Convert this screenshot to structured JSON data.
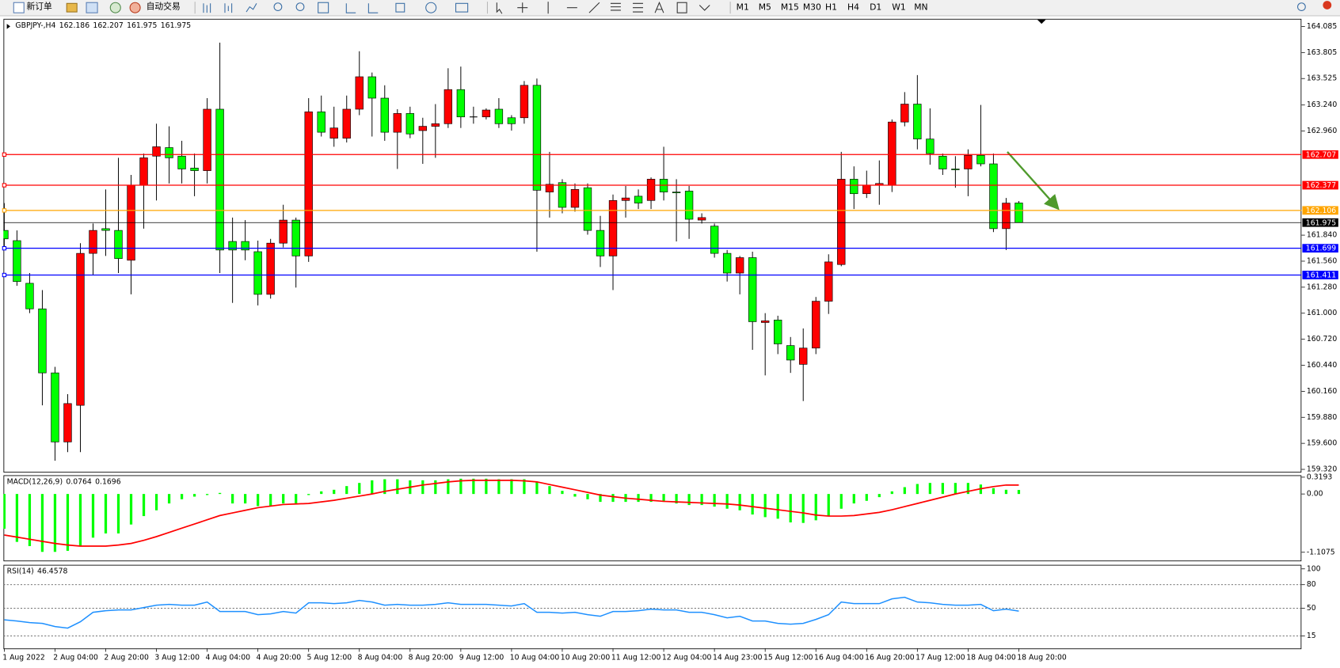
{
  "toolbar": {
    "new_order": "新订单",
    "auto_trading": "自动交易",
    "timeframes": [
      "M1",
      "M5",
      "M15",
      "M30",
      "H1",
      "H4",
      "D1",
      "W1",
      "MN"
    ]
  },
  "chart_data": [
    {
      "type": "candlestick",
      "title": "GBPJPY-,H4",
      "header_values": [
        162.186,
        162.207,
        161.975,
        161.975
      ],
      "up_color": "#ff0000",
      "down_color": "#00ff00",
      "ylim": [
        159.294,
        164.168
      ],
      "yticks": [
        164.085,
        163.805,
        163.525,
        {
          "value": 163.24,
          "label": "163.240"
        },
        {
          "value": 162.96,
          "label": "162.960"
        },
        {
          "value": 161.84,
          "label": "161.840"
        },
        {
          "value": 161.56,
          "label": "161.560"
        },
        {
          "value": 161.28,
          "label": "161.280"
        },
        {
          "value": 161.0,
          "label": "161.000"
        },
        {
          "value": 160.72,
          "label": "160.720"
        },
        {
          "value": 160.44,
          "label": "160.440"
        },
        {
          "value": 160.16,
          "label": "160.160"
        },
        {
          "value": 159.88,
          "label": "159.880"
        },
        {
          "value": 159.6,
          "label": "159.600"
        },
        {
          "value": 159.32,
          "label": "159.320"
        }
      ],
      "hlines": [
        {
          "value": 162.707,
          "color": "#ff0000"
        },
        {
          "value": 162.377,
          "color": "#ff0000"
        },
        {
          "value": 162.106,
          "color": "#ffa500"
        },
        {
          "value": 161.975,
          "color": "#000000"
        },
        {
          "value": 161.699,
          "color": "#0000ff"
        },
        {
          "value": 161.411,
          "color": "#0000ff"
        }
      ],
      "categories": [
        "1 Aug 2022",
        null,
        null,
        null,
        "2 Aug 04:00",
        null,
        null,
        null,
        "2 Aug 20:00",
        null,
        null,
        null,
        "3 Aug 12:00",
        null,
        null,
        null,
        "4 Aug 04:00",
        null,
        null,
        null,
        "4 Aug 20:00",
        null,
        null,
        null,
        "5 Aug 12:00",
        null,
        null,
        null,
        "8 Aug 04:00",
        null,
        null,
        null,
        "8 Aug 20:00",
        null,
        null,
        null,
        "9 Aug 12:00",
        null,
        null,
        null,
        "10 Aug 04:00",
        null,
        null,
        null,
        "10 Aug 20:00",
        null,
        null,
        null,
        "11 Aug 12:00",
        null,
        null,
        null,
        "12 Aug 04:00",
        null,
        null,
        null,
        "14 Aug 23:00",
        null,
        null,
        null,
        "15 Aug 12:00",
        null,
        null,
        null,
        "16 Aug 04:00",
        null,
        null,
        null,
        "16 Aug 20:00",
        null,
        null,
        null,
        "17 Aug 12:00",
        null,
        null,
        null,
        "18 Aug 04:00",
        null,
        null,
        null,
        "18 Aug 20:00"
      ],
      "open": [
        161.891,
        161.781,
        161.322,
        161.047,
        160.358,
        159.615,
        160.009,
        161.644,
        161.91,
        161.891,
        161.57,
        162.378,
        162.69,
        162.782,
        162.69,
        162.562,
        162.534,
        163.195,
        161.772,
        161.772,
        161.662,
        161.203,
        161.754,
        162.002,
        161.616,
        163.167,
        162.883,
        162.883,
        163.195,
        163.544,
        163.314,
        162.947,
        163.149,
        162.965,
        163.011,
        163.039,
        163.406,
        163.112,
        163.112,
        163.195,
        163.103,
        163.103,
        163.452,
        162.304,
        162.405,
        162.139,
        162.35,
        161.891,
        161.616,
        162.213,
        162.259,
        162.213,
        162.442,
        162.304,
        162.314,
        162.002,
        161.937,
        161.644,
        161.432,
        161.598,
        160.9,
        160.927,
        160.652,
        160.45,
        160.625,
        161.129,
        161.524,
        162.442,
        162.286,
        162.378,
        162.378,
        163.057,
        163.25,
        162.874,
        162.69,
        162.552,
        162.552,
        162.699,
        162.607,
        161.91,
        162.186
      ],
      "high": [
        162.185,
        161.891,
        161.432,
        161.249,
        160.423,
        160.129,
        161.754,
        161.965,
        162.332,
        162.672,
        162.488,
        162.718,
        163.039,
        163.011,
        162.855,
        162.718,
        163.314,
        163.911,
        162.029,
        162.002,
        161.781,
        161.8,
        162.167,
        162.029,
        163.314,
        163.342,
        163.222,
        163.342,
        163.819,
        163.59,
        163.452,
        163.195,
        163.222,
        163.103,
        163.25,
        163.636,
        163.654,
        163.222,
        163.204,
        163.314,
        163.131,
        163.498,
        163.525,
        162.736,
        162.442,
        162.396,
        162.396,
        162.047,
        162.277,
        162.369,
        162.332,
        162.461,
        162.791,
        162.442,
        162.369,
        162.075,
        161.965,
        161.68,
        161.616,
        161.662,
        161.001,
        160.973,
        160.744,
        160.836,
        161.175,
        161.634,
        162.736,
        162.58,
        162.534,
        162.644,
        163.085,
        163.379,
        163.562,
        163.204,
        162.718,
        162.69,
        162.763,
        163.241,
        162.718,
        162.24,
        162.207
      ],
      "low": [
        161.708,
        161.295,
        161.001,
        160.009,
        159.413,
        159.505,
        159.505,
        161.414,
        161.616,
        161.432,
        161.203,
        161.91,
        162.213,
        162.396,
        162.396,
        162.259,
        162.396,
        161.432,
        161.111,
        161.57,
        161.084,
        161.157,
        161.708,
        161.276,
        161.552,
        162.901,
        162.791,
        162.837,
        163.131,
        162.901,
        162.855,
        162.552,
        162.883,
        162.607,
        162.672,
        162.993,
        162.993,
        163.039,
        163.085,
        162.993,
        162.965,
        163.039,
        161.662,
        162.029,
        162.075,
        162.093,
        161.845,
        161.497,
        161.249,
        162.029,
        162.121,
        162.121,
        162.213,
        161.772,
        161.8,
        161.965,
        161.598,
        161.341,
        161.203,
        160.606,
        160.331,
        160.56,
        160.358,
        160.055,
        160.56,
        160.992,
        161.506,
        162.121,
        162.24,
        162.167,
        162.304,
        163.011,
        162.763,
        162.598,
        162.488,
        162.35,
        162.259,
        162.58,
        161.873,
        161.68,
        161.975
      ],
      "close": [
        161.8,
        161.341,
        161.047,
        160.358,
        159.615,
        160.028,
        161.644,
        161.891,
        161.891,
        161.588,
        162.378,
        162.672,
        162.791,
        162.672,
        162.552,
        162.534,
        163.195,
        161.68,
        161.68,
        161.68,
        161.203,
        161.754,
        162.002,
        161.616,
        163.167,
        162.947,
        162.993,
        163.195,
        163.544,
        163.314,
        162.947,
        163.149,
        162.929,
        163.011,
        163.039,
        163.406,
        163.112,
        163.112,
        163.186,
        163.039,
        163.039,
        163.452,
        162.323,
        162.387,
        162.139,
        162.332,
        161.891,
        161.616,
        162.213,
        162.24,
        162.185,
        162.442,
        162.304,
        162.295,
        162.011,
        162.029,
        161.644,
        161.432,
        161.598,
        160.909,
        160.918,
        160.67,
        160.496,
        160.625,
        161.129,
        161.552,
        162.442,
        162.286,
        162.378,
        162.396,
        163.057,
        163.25,
        162.874,
        162.718,
        162.552,
        162.543,
        162.699,
        162.607,
        161.91,
        162.185,
        161.975
      ]
    },
    {
      "type": "macd",
      "title": "MACD(12,26,9)",
      "header_values": [
        0.0764,
        0.1696
      ],
      "ylim": [
        -1.264,
        0.357
      ],
      "yticks": [
        0.3193,
        {
          "value": 0,
          "label": "0.00"
        },
        -1.1075
      ],
      "histogram": {
        "color": "#00ff00",
        "values": [
          -0.66,
          -0.91,
          -0.99,
          -1.1,
          -1.1,
          -1.08,
          -0.99,
          -0.83,
          -0.75,
          -0.75,
          -0.58,
          -0.42,
          -0.31,
          -0.18,
          -0.1,
          -0.05,
          -0.02,
          0.02,
          -0.18,
          -0.18,
          -0.23,
          -0.23,
          -0.18,
          -0.2,
          -0.02,
          0.05,
          0.08,
          0.15,
          0.21,
          0.26,
          0.28,
          0.28,
          0.26,
          0.26,
          0.26,
          0.28,
          0.29,
          0.29,
          0.29,
          0.28,
          0.28,
          0.28,
          0.23,
          0.15,
          0.06,
          -0.05,
          -0.1,
          -0.15,
          -0.15,
          -0.15,
          -0.15,
          -0.15,
          -0.15,
          -0.18,
          -0.21,
          -0.21,
          -0.24,
          -0.28,
          -0.31,
          -0.39,
          -0.44,
          -0.47,
          -0.54,
          -0.55,
          -0.5,
          -0.42,
          -0.28,
          -0.18,
          -0.13,
          -0.06,
          0.05,
          0.13,
          0.19,
          0.21,
          0.21,
          0.21,
          0.21,
          0.18,
          0.11,
          0.08,
          0.0764
        ]
      },
      "signal": {
        "color": "#ff0000",
        "values": [
          -0.78,
          -0.82,
          -0.86,
          -0.9,
          -0.94,
          -0.97,
          -0.99,
          -0.99,
          -0.99,
          -0.97,
          -0.94,
          -0.88,
          -0.81,
          -0.73,
          -0.65,
          -0.57,
          -0.49,
          -0.41,
          -0.36,
          -0.31,
          -0.26,
          -0.23,
          -0.2,
          -0.19,
          -0.18,
          -0.15,
          -0.12,
          -0.08,
          -0.04,
          0.0,
          0.05,
          0.09,
          0.13,
          0.17,
          0.2,
          0.23,
          0.25,
          0.26,
          0.26,
          0.26,
          0.26,
          0.25,
          0.23,
          0.18,
          0.13,
          0.08,
          0.03,
          -0.02,
          -0.05,
          -0.08,
          -0.1,
          -0.12,
          -0.14,
          -0.15,
          -0.16,
          -0.17,
          -0.18,
          -0.19,
          -0.21,
          -0.24,
          -0.27,
          -0.3,
          -0.33,
          -0.36,
          -0.4,
          -0.42,
          -0.42,
          -0.41,
          -0.38,
          -0.35,
          -0.3,
          -0.24,
          -0.18,
          -0.12,
          -0.06,
          0.0,
          0.05,
          0.1,
          0.14,
          0.17,
          0.1696
        ]
      }
    },
    {
      "type": "line",
      "title": "RSI(14)",
      "header_values": [
        46.4578
      ],
      "color": "#1e90ff",
      "ylim": [
        -0.7,
        105.2
      ],
      "yticks": [
        100,
        80,
        50,
        15
      ],
      "levels": [
        80,
        50,
        15
      ],
      "values": [
        35.5,
        34,
        32,
        31,
        27,
        25,
        33,
        45,
        47,
        48,
        48,
        51,
        54,
        55,
        54,
        54,
        58,
        46,
        46,
        46,
        42,
        43,
        46,
        44,
        57,
        57,
        56,
        57,
        60,
        58,
        54,
        55,
        54,
        54,
        55,
        57,
        55,
        55,
        55,
        54,
        53,
        56,
        45,
        45,
        44,
        45,
        42,
        40,
        46,
        46,
        47,
        49,
        48,
        48,
        45,
        45,
        42,
        38,
        40,
        34,
        34,
        31,
        30,
        31,
        36,
        42,
        58,
        56,
        56,
        56,
        62,
        64,
        58,
        57,
        55,
        54,
        54,
        55,
        47,
        49,
        46.4578
      ]
    }
  ]
}
